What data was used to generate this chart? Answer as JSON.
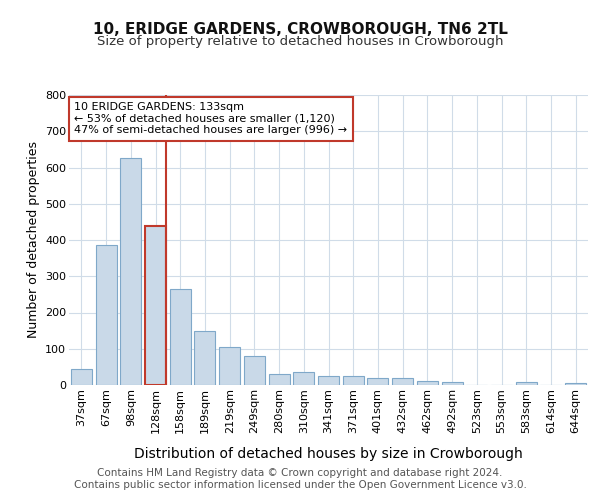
{
  "title": "10, ERIDGE GARDENS, CROWBOROUGH, TN6 2TL",
  "subtitle": "Size of property relative to detached houses in Crowborough",
  "xlabel": "Distribution of detached houses by size in Crowborough",
  "ylabel": "Number of detached properties",
  "categories": [
    "37sqm",
    "67sqm",
    "98sqm",
    "128sqm",
    "158sqm",
    "189sqm",
    "219sqm",
    "249sqm",
    "280sqm",
    "310sqm",
    "341sqm",
    "371sqm",
    "401sqm",
    "432sqm",
    "462sqm",
    "492sqm",
    "523sqm",
    "553sqm",
    "583sqm",
    "614sqm",
    "644sqm"
  ],
  "values": [
    45,
    385,
    625,
    440,
    265,
    150,
    105,
    80,
    30,
    35,
    25,
    25,
    20,
    18,
    10,
    8,
    0,
    0,
    8,
    0,
    5
  ],
  "bar_color": "#c9d9e8",
  "bar_edge_color": "#7fa8c9",
  "highlight_bar_index": 3,
  "highlight_edge_color": "#c0392b",
  "vline_color": "#c0392b",
  "annotation_text": "10 ERIDGE GARDENS: 133sqm\n← 53% of detached houses are smaller (1,120)\n47% of semi-detached houses are larger (996) →",
  "annotation_box_color": "#ffffff",
  "annotation_box_edge_color": "#c0392b",
  "footer_text": "Contains HM Land Registry data © Crown copyright and database right 2024.\nContains public sector information licensed under the Open Government Licence v3.0.",
  "ylim": [
    0,
    800
  ],
  "yticks": [
    0,
    100,
    200,
    300,
    400,
    500,
    600,
    700,
    800
  ],
  "bg_color": "#ffffff",
  "grid_color": "#d0dce8",
  "title_fontsize": 11,
  "subtitle_fontsize": 9.5,
  "xlabel_fontsize": 10,
  "ylabel_fontsize": 9,
  "tick_fontsize": 8,
  "annotation_fontsize": 8,
  "footer_fontsize": 7.5
}
